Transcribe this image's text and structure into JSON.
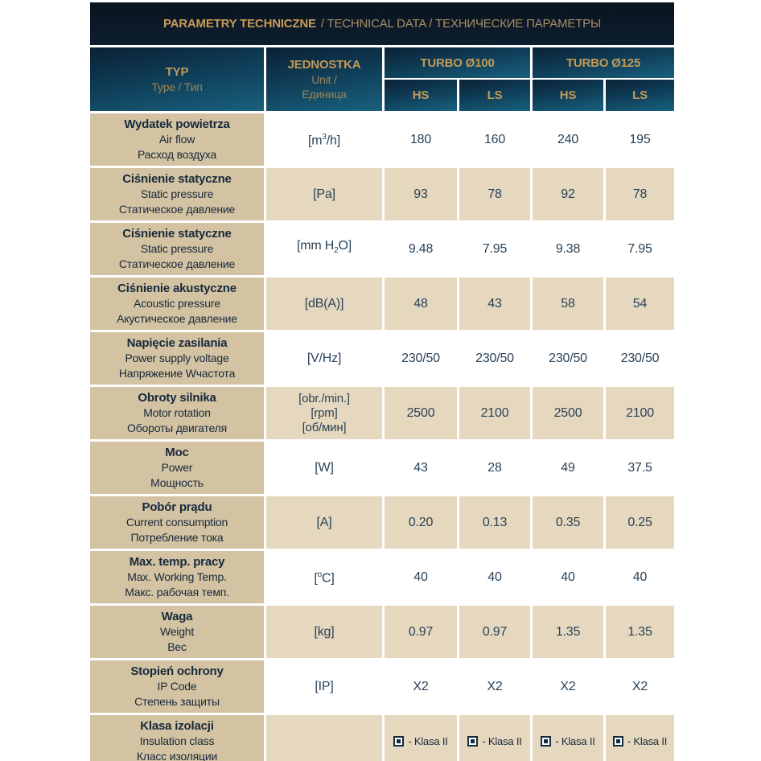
{
  "title": {
    "primary": "PARAMETRY TECHNICZNE",
    "secondary": "/ TECHNICAL DATA / ТЕХНИЧЕСКИЕ ПАРАМЕТРЫ"
  },
  "table_header": {
    "typ_title": "TYP",
    "typ_sub": "Type / Тип",
    "unit_title": "JEDNOSTKA",
    "unit_sub1": "Unit /",
    "unit_sub2": "Единица",
    "group1": "TURBO Ø100",
    "group2": "TURBO Ø125",
    "sub_hs": "HS",
    "sub_ls": "LS"
  },
  "rows": [
    {
      "label_pl": "Wydatek powietrza",
      "label_en": "Air flow",
      "label_ru": "Расход воздуха",
      "unit": {
        "pre": "[m",
        "sup": "3",
        "post": "/h]"
      },
      "values": [
        "180",
        "160",
        "240",
        "195"
      ]
    },
    {
      "label_pl": "Ciśnienie statyczne",
      "label_en": "Static pressure",
      "label_ru": "Статическое давление",
      "unit_text": "[Pa]",
      "values": [
        "93",
        "78",
        "92",
        "78"
      ]
    },
    {
      "label_pl": "Ciśnienie statyczne",
      "label_en": "Static pressure",
      "label_ru": "Статическое давление",
      "unit": {
        "pre": "[mm H",
        "sub": "2",
        "post": "O]"
      },
      "values": [
        "9.48",
        "7.95",
        "9.38",
        "7.95"
      ]
    },
    {
      "label_pl": "Ciśnienie akustyczne",
      "label_en": "Acoustic pressure",
      "label_ru": "Акустическое давление",
      "unit_text": "[dB(A)]",
      "values": [
        "48",
        "43",
        "58",
        "54"
      ]
    },
    {
      "label_pl": "Napięcie zasilania",
      "label_en": "Power supply voltage",
      "label_ru": "Напряжение Wчастота",
      "unit_text": "[V/Hz]",
      "values": [
        "230/50",
        "230/50",
        "230/50",
        "230/50"
      ]
    },
    {
      "label_pl": "Obroty silnika",
      "label_en": "Motor rotation",
      "label_ru": "Обороты двигателя",
      "unit_lines": [
        "[obr./min.]",
        "[rpm]",
        "[об/мин]"
      ],
      "values": [
        "2500",
        "2100",
        "2500",
        "2100"
      ]
    },
    {
      "label_pl": "Moc",
      "label_en": "Power",
      "label_ru": "Мощность",
      "unit_text": "[W]",
      "values": [
        "43",
        "28",
        "49",
        "37.5"
      ]
    },
    {
      "label_pl": "Pobór prądu",
      "label_en": "Current consumption",
      "label_ru": "Потребление тока",
      "unit_text": "[A]",
      "values": [
        "0.20",
        "0.13",
        "0.35",
        "0.25"
      ]
    },
    {
      "label_pl": "Max. temp. pracy",
      "label_en": "Max. Working Temp.",
      "label_ru": "Макс. рабочая темп.",
      "unit": {
        "pre": "[",
        "sup": "o",
        "post": "C]"
      },
      "values": [
        "40",
        "40",
        "40",
        "40"
      ]
    },
    {
      "label_pl": "Waga",
      "label_en": "Weight",
      "label_ru": "Вес",
      "unit_text": "[kg]",
      "values": [
        "0.97",
        "0.97",
        "1.35",
        "1.35"
      ]
    },
    {
      "label_pl": "Stopień ochrony",
      "label_en": "IP Code",
      "label_ru": "Степень защиты",
      "unit_text": "[IP]",
      "values": [
        "X2",
        "X2",
        "X2",
        "X2"
      ]
    },
    {
      "label_pl": "Klasa izolacji",
      "label_en": "Insulation class",
      "label_ru": "Класс изоляции",
      "unit_text": "",
      "values": [
        "- Klasa II",
        "- Klasa II",
        "- Klasa II",
        "- Klasa II"
      ],
      "value_icon": "class-ii-icon"
    }
  ],
  "colors": {
    "accent_gold": "#c89c55",
    "navy_bg": "#0b1724",
    "teal_header": "#17607d",
    "label_tan": "#d4c3a2",
    "row_beige": "#e5d8bf",
    "text_navy": "#16293c"
  }
}
